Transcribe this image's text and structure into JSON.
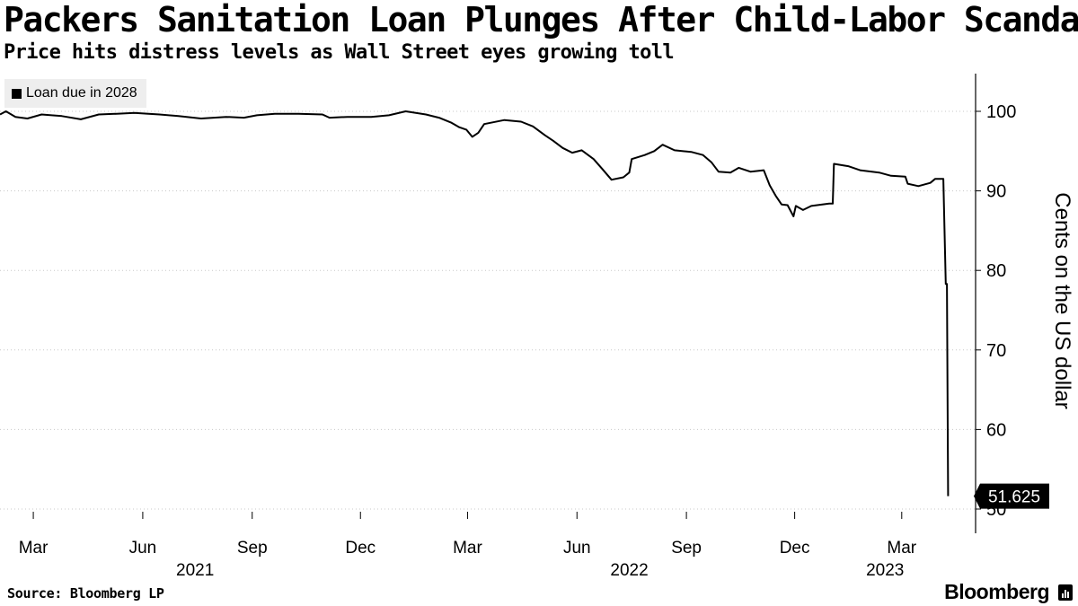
{
  "title": "Packers Sanitation Loan Plunges After Child-Labor Scandal",
  "subtitle": "Price hits distress levels as Wall Street eyes growing toll",
  "source": "Source: Bloomberg LP",
  "brand": "Bloomberg",
  "chart_data": {
    "type": "line",
    "title": "Packers Sanitation Loan Plunges After Child-Labor Scandal",
    "subtitle": "Price hits distress levels as Wall Street eyes growing toll",
    "ylabel": "Cents on the US dollar",
    "ylim": [
      46.5,
      105
    ],
    "yticks": [
      50,
      60,
      70,
      80,
      90,
      100
    ],
    "xlim": [
      "2021-02-01",
      "2023-04-20"
    ],
    "x_month_ticks": [
      {
        "date": "2021-03-01",
        "label": "Mar"
      },
      {
        "date": "2021-06-01",
        "label": "Jun"
      },
      {
        "date": "2021-09-01",
        "label": "Sep"
      },
      {
        "date": "2021-12-01",
        "label": "Dec"
      },
      {
        "date": "2022-03-01",
        "label": "Mar"
      },
      {
        "date": "2022-06-01",
        "label": "Jun"
      },
      {
        "date": "2022-09-01",
        "label": "Sep"
      },
      {
        "date": "2022-12-01",
        "label": "Dec"
      },
      {
        "date": "2023-03-01",
        "label": "Mar"
      }
    ],
    "x_year_labels": [
      {
        "date": "2021-07-15",
        "label": "2021"
      },
      {
        "date": "2022-07-15",
        "label": "2022"
      },
      {
        "date": "2023-02-15",
        "label": "2023"
      }
    ],
    "grid": "horizontal dotted",
    "legend_position": "top-left",
    "last_value_label": "51.625",
    "series": [
      {
        "name": "Loan due in 2028",
        "color": "#000000",
        "points": [
          [
            "2021-02-01",
            99.6
          ],
          [
            "2021-02-06",
            100.0
          ],
          [
            "2021-02-14",
            99.3
          ],
          [
            "2021-02-24",
            99.1
          ],
          [
            "2021-03-08",
            99.6
          ],
          [
            "2021-03-25",
            99.4
          ],
          [
            "2021-04-10",
            99.0
          ],
          [
            "2021-04-25",
            99.6
          ],
          [
            "2021-05-10",
            99.7
          ],
          [
            "2021-05-25",
            99.8
          ],
          [
            "2021-06-15",
            99.6
          ],
          [
            "2021-07-01",
            99.4
          ],
          [
            "2021-07-20",
            99.1
          ],
          [
            "2021-08-10",
            99.3
          ],
          [
            "2021-08-25",
            99.2
          ],
          [
            "2021-09-05",
            99.5
          ],
          [
            "2021-09-20",
            99.7
          ],
          [
            "2021-10-10",
            99.7
          ],
          [
            "2021-10-30",
            99.6
          ],
          [
            "2021-11-05",
            99.2
          ],
          [
            "2021-11-20",
            99.3
          ],
          [
            "2021-12-10",
            99.3
          ],
          [
            "2021-12-25",
            99.5
          ],
          [
            "2022-01-08",
            100.0
          ],
          [
            "2022-01-25",
            99.6
          ],
          [
            "2022-02-05",
            99.2
          ],
          [
            "2022-02-15",
            98.6
          ],
          [
            "2022-02-22",
            98.0
          ],
          [
            "2022-02-28",
            97.7
          ],
          [
            "2022-03-05",
            96.8
          ],
          [
            "2022-03-10",
            97.3
          ],
          [
            "2022-03-15",
            98.4
          ],
          [
            "2022-04-01",
            98.9
          ],
          [
            "2022-04-15",
            98.7
          ],
          [
            "2022-04-25",
            98.1
          ],
          [
            "2022-05-05",
            97.0
          ],
          [
            "2022-05-12",
            96.3
          ],
          [
            "2022-05-20",
            95.4
          ],
          [
            "2022-05-28",
            94.8
          ],
          [
            "2022-06-05",
            95.1
          ],
          [
            "2022-06-15",
            94.0
          ],
          [
            "2022-06-22",
            92.8
          ],
          [
            "2022-06-30",
            91.4
          ],
          [
            "2022-07-10",
            91.7
          ],
          [
            "2022-07-15",
            92.3
          ],
          [
            "2022-07-17",
            94.0
          ],
          [
            "2022-07-28",
            94.5
          ],
          [
            "2022-08-05",
            95.0
          ],
          [
            "2022-08-12",
            95.8
          ],
          [
            "2022-08-22",
            95.1
          ],
          [
            "2022-09-05",
            94.9
          ],
          [
            "2022-09-15",
            94.5
          ],
          [
            "2022-09-22",
            93.6
          ],
          [
            "2022-09-28",
            92.4
          ],
          [
            "2022-10-08",
            92.3
          ],
          [
            "2022-10-15",
            92.9
          ],
          [
            "2022-10-25",
            92.4
          ],
          [
            "2022-11-05",
            92.6
          ],
          [
            "2022-11-10",
            90.7
          ],
          [
            "2022-11-15",
            89.4
          ],
          [
            "2022-11-20",
            88.3
          ],
          [
            "2022-11-25",
            88.2
          ],
          [
            "2022-11-30",
            86.8
          ],
          [
            "2022-12-02",
            88.1
          ],
          [
            "2022-12-08",
            87.6
          ],
          [
            "2022-12-15",
            88.1
          ],
          [
            "2022-12-30",
            88.4
          ],
          [
            "2023-01-02",
            88.4
          ],
          [
            "2023-01-03",
            93.4
          ],
          [
            "2023-01-15",
            93.1
          ],
          [
            "2023-01-25",
            92.6
          ],
          [
            "2023-02-10",
            92.3
          ],
          [
            "2023-02-20",
            91.9
          ],
          [
            "2023-03-04",
            91.8
          ],
          [
            "2023-03-06",
            90.9
          ],
          [
            "2023-03-15",
            90.6
          ],
          [
            "2023-03-25",
            91.0
          ],
          [
            "2023-03-29",
            91.5
          ],
          [
            "2023-04-03",
            91.5
          ],
          [
            "2023-04-05",
            91.5
          ],
          [
            "2023-04-07",
            78.3
          ],
          [
            "2023-04-08",
            78.3
          ],
          [
            "2023-04-09",
            51.625
          ]
        ]
      }
    ]
  }
}
